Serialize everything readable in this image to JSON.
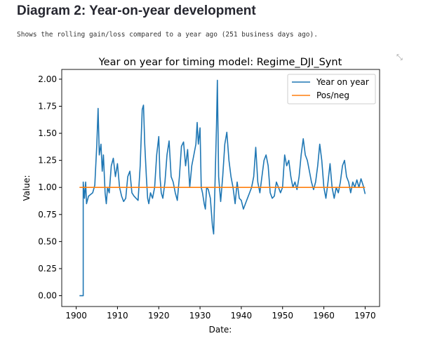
{
  "page": {
    "heading": "Diagram 2: Year-on-year development",
    "description": "Shows the rolling gain/loss compared to a year ago (251 business days ago).",
    "expand_icon": "fullscreen-expand-icon"
  },
  "chart_data": {
    "type": "line",
    "title": "Year on year for timing model: Regime_DJI_Synt",
    "xlabel": "Date:",
    "ylabel": "Value:",
    "xlim": [
      1896.5,
      1973.5
    ],
    "ylim": [
      -0.1,
      2.09
    ],
    "xticks": [
      "1900",
      "1910",
      "1920",
      "1930",
      "1940",
      "1950",
      "1960",
      "1970"
    ],
    "yticks": [
      "0.00",
      "0.25",
      "0.50",
      "0.75",
      "1.00",
      "1.25",
      "1.50",
      "1.75",
      "2.00"
    ],
    "grid": false,
    "legend": "top-right",
    "series": [
      {
        "name": "Year on year",
        "color": "#1f77b4",
        "points": [
          [
            1900.8,
            0
          ],
          [
            1901.7,
            0
          ],
          [
            1901.7,
            1.05
          ],
          [
            1902,
            0.9
          ],
          [
            1902.3,
            1.05
          ],
          [
            1902.5,
            0.85
          ],
          [
            1903,
            0.92
          ],
          [
            1904,
            0.95
          ],
          [
            1904.5,
            1.02
          ],
          [
            1905,
            1.4
          ],
          [
            1905.3,
            1.73
          ],
          [
            1905.6,
            1.3
          ],
          [
            1906,
            1.4
          ],
          [
            1906.3,
            1.15
          ],
          [
            1906.6,
            1.3
          ],
          [
            1907,
            0.95
          ],
          [
            1907.3,
            0.85
          ],
          [
            1907.6,
            1.0
          ],
          [
            1908,
            0.95
          ],
          [
            1908.5,
            1.2
          ],
          [
            1909,
            1.27
          ],
          [
            1909.5,
            1.1
          ],
          [
            1910,
            1.22
          ],
          [
            1910.5,
            1.0
          ],
          [
            1911,
            0.92
          ],
          [
            1911.5,
            0.87
          ],
          [
            1912,
            0.9
          ],
          [
            1912.5,
            1.1
          ],
          [
            1913,
            1.15
          ],
          [
            1913.5,
            0.95
          ],
          [
            1914,
            0.92
          ],
          [
            1914.5,
            0.9
          ],
          [
            1915,
            0.88
          ],
          [
            1915.5,
            1.2
          ],
          [
            1916,
            1.72
          ],
          [
            1916.3,
            1.76
          ],
          [
            1916.6,
            1.4
          ],
          [
            1917,
            1.1
          ],
          [
            1917.3,
            0.9
          ],
          [
            1917.6,
            0.85
          ],
          [
            1918,
            0.95
          ],
          [
            1918.5,
            0.9
          ],
          [
            1919,
            1.0
          ],
          [
            1919.5,
            1.3
          ],
          [
            1920,
            1.47
          ],
          [
            1920.3,
            1.1
          ],
          [
            1920.6,
            0.95
          ],
          [
            1921,
            0.9
          ],
          [
            1921.5,
            1.05
          ],
          [
            1922,
            1.3
          ],
          [
            1922.5,
            1.43
          ],
          [
            1923,
            1.1
          ],
          [
            1923.5,
            1.05
          ],
          [
            1924,
            0.95
          ],
          [
            1924.5,
            0.88
          ],
          [
            1925,
            1.1
          ],
          [
            1925.5,
            1.38
          ],
          [
            1926,
            1.42
          ],
          [
            1926.5,
            1.2
          ],
          [
            1927,
            1.35
          ],
          [
            1927.5,
            1.0
          ],
          [
            1928,
            1.2
          ],
          [
            1928.5,
            1.3
          ],
          [
            1929,
            1.4
          ],
          [
            1929.3,
            1.6
          ],
          [
            1929.6,
            1.4
          ],
          [
            1930,
            1.55
          ],
          [
            1930.3,
            1.0
          ],
          [
            1930.6,
            0.95
          ],
          [
            1931,
            0.85
          ],
          [
            1931.3,
            0.8
          ],
          [
            1931.6,
            1.0
          ],
          [
            1932,
            0.98
          ],
          [
            1932.5,
            0.9
          ],
          [
            1933,
            0.65
          ],
          [
            1933.3,
            0.57
          ],
          [
            1933.6,
            1.0
          ],
          [
            1934,
            1.58
          ],
          [
            1934.2,
            1.99
          ],
          [
            1934.5,
            1.1
          ],
          [
            1935,
            0.87
          ],
          [
            1935.5,
            1.1
          ],
          [
            1936,
            1.4
          ],
          [
            1936.5,
            1.51
          ],
          [
            1937,
            1.25
          ],
          [
            1937.5,
            1.1
          ],
          [
            1938,
            1.0
          ],
          [
            1938.5,
            0.85
          ],
          [
            1939,
            1.05
          ],
          [
            1939.5,
            0.9
          ],
          [
            1940,
            0.88
          ],
          [
            1940.5,
            0.8
          ],
          [
            1941,
            0.85
          ],
          [
            1941.5,
            0.9
          ],
          [
            1942,
            0.95
          ],
          [
            1942.5,
            1.0
          ],
          [
            1943,
            1.1
          ],
          [
            1943.5,
            1.37
          ],
          [
            1944,
            1.05
          ],
          [
            1944.5,
            0.95
          ],
          [
            1945,
            1.1
          ],
          [
            1945.5,
            1.25
          ],
          [
            1946,
            1.3
          ],
          [
            1946.5,
            1.2
          ],
          [
            1947,
            0.95
          ],
          [
            1947.5,
            0.9
          ],
          [
            1948,
            0.92
          ],
          [
            1948.5,
            1.05
          ],
          [
            1949,
            1.0
          ],
          [
            1949.5,
            0.95
          ],
          [
            1950,
            1.0
          ],
          [
            1950.5,
            1.3
          ],
          [
            1951,
            1.2
          ],
          [
            1951.5,
            1.25
          ],
          [
            1952,
            1.1
          ],
          [
            1952.5,
            1.0
          ],
          [
            1953,
            1.05
          ],
          [
            1953.5,
            0.98
          ],
          [
            1954,
            1.1
          ],
          [
            1954.5,
            1.3
          ],
          [
            1955,
            1.45
          ],
          [
            1955.5,
            1.3
          ],
          [
            1956,
            1.25
          ],
          [
            1956.5,
            1.15
          ],
          [
            1957,
            1.05
          ],
          [
            1957.5,
            0.98
          ],
          [
            1958,
            1.05
          ],
          [
            1958.5,
            1.2
          ],
          [
            1959,
            1.4
          ],
          [
            1959.5,
            1.25
          ],
          [
            1960,
            1.0
          ],
          [
            1960.5,
            0.9
          ],
          [
            1961,
            1.05
          ],
          [
            1961.5,
            1.22
          ],
          [
            1962,
            1.0
          ],
          [
            1962.5,
            0.9
          ],
          [
            1963,
            1.0
          ],
          [
            1963.5,
            0.95
          ],
          [
            1964,
            1.05
          ],
          [
            1964.5,
            1.2
          ],
          [
            1965,
            1.25
          ],
          [
            1965.5,
            1.1
          ],
          [
            1966,
            1.05
          ],
          [
            1966.5,
            0.95
          ],
          [
            1967,
            1.05
          ],
          [
            1967.5,
            1.0
          ],
          [
            1968,
            1.07
          ],
          [
            1968.5,
            1.0
          ],
          [
            1969,
            1.08
          ],
          [
            1969.5,
            1.02
          ],
          [
            1970,
            0.94
          ]
        ]
      },
      {
        "name": "Pos/neg",
        "color": "#ff7f0e",
        "points": [
          [
            1900.8,
            1
          ],
          [
            1970,
            1
          ]
        ]
      }
    ]
  }
}
